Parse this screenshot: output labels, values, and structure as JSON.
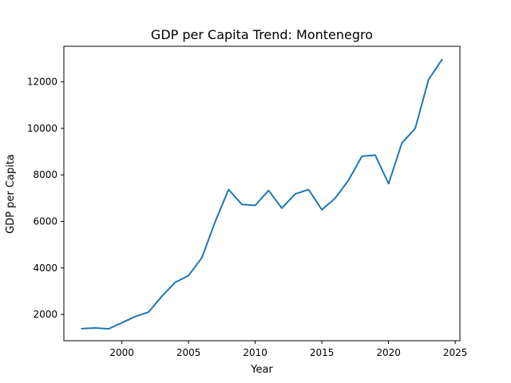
{
  "chart_data": {
    "type": "line",
    "title": "GDP per Capita Trend: Montenegro",
    "xlabel": "Year",
    "ylabel": "GDP per Capita",
    "xlim": [
      1995.65,
      2025.35
    ],
    "ylim": [
      870,
      13530
    ],
    "xticks": [
      2000,
      2005,
      2010,
      2015,
      2020,
      2025
    ],
    "yticks": [
      2000,
      4000,
      6000,
      8000,
      10000,
      12000
    ],
    "grid": false,
    "colors": {
      "line": "#1f77b4",
      "axes": "#000000",
      "background": "#ffffff"
    },
    "x": [
      1997,
      1998,
      1999,
      2000,
      2001,
      2002,
      2003,
      2004,
      2005,
      2006,
      2007,
      2008,
      2009,
      2010,
      2011,
      2012,
      2013,
      2014,
      2015,
      2016,
      2017,
      2018,
      2019,
      2020,
      2021,
      2022,
      2023,
      2024
    ],
    "series": [
      {
        "values": [
          1390,
          1420,
          1380,
          1640,
          1910,
          2100,
          2780,
          3380,
          3670,
          4440,
          5990,
          7370,
          6730,
          6690,
          7330,
          6570,
          7180,
          7370,
          6500,
          7000,
          7770,
          8800,
          8850,
          7620,
          9370,
          10000,
          12100,
          12950
        ]
      }
    ]
  }
}
